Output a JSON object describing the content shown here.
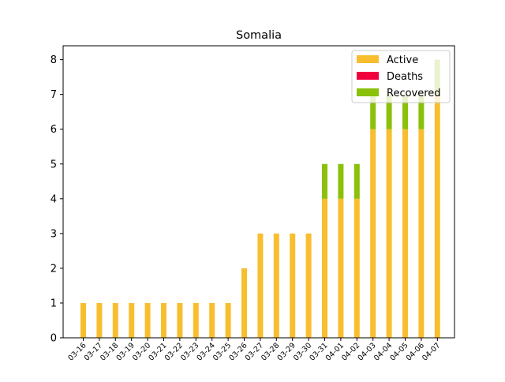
{
  "chart_data": {
    "type": "bar",
    "stacked": true,
    "title": "Somalia",
    "xlabel": "",
    "ylabel": "",
    "ylim": [
      0,
      8.4
    ],
    "yticks": [
      0,
      1,
      2,
      3,
      4,
      5,
      6,
      7,
      8
    ],
    "grid": false,
    "legend_position": "top-right",
    "categories": [
      "03-16",
      "03-17",
      "03-18",
      "03-19",
      "03-20",
      "03-21",
      "03-22",
      "03-23",
      "03-24",
      "03-25",
      "03-26",
      "03-27",
      "03-28",
      "03-29",
      "03-30",
      "03-31",
      "04-01",
      "04-02",
      "04-03",
      "04-04",
      "04-05",
      "04-06",
      "04-07"
    ],
    "series": [
      {
        "name": "Active",
        "color": "#f8be2f",
        "values": [
          1,
          1,
          1,
          1,
          1,
          1,
          1,
          1,
          1,
          1,
          2,
          3,
          3,
          3,
          3,
          4,
          4,
          4,
          6,
          6,
          6,
          6,
          7
        ]
      },
      {
        "name": "Deaths",
        "color": "#f0003c",
        "values": [
          0,
          0,
          0,
          0,
          0,
          0,
          0,
          0,
          0,
          0,
          0,
          0,
          0,
          0,
          0,
          0,
          0,
          0,
          0,
          0,
          0,
          0,
          0
        ]
      },
      {
        "name": "Recovered",
        "color": "#8ac10a",
        "values": [
          0,
          0,
          0,
          0,
          0,
          0,
          0,
          0,
          0,
          0,
          0,
          0,
          0,
          0,
          0,
          1,
          1,
          1,
          1,
          1,
          1,
          1,
          1
        ]
      }
    ]
  }
}
